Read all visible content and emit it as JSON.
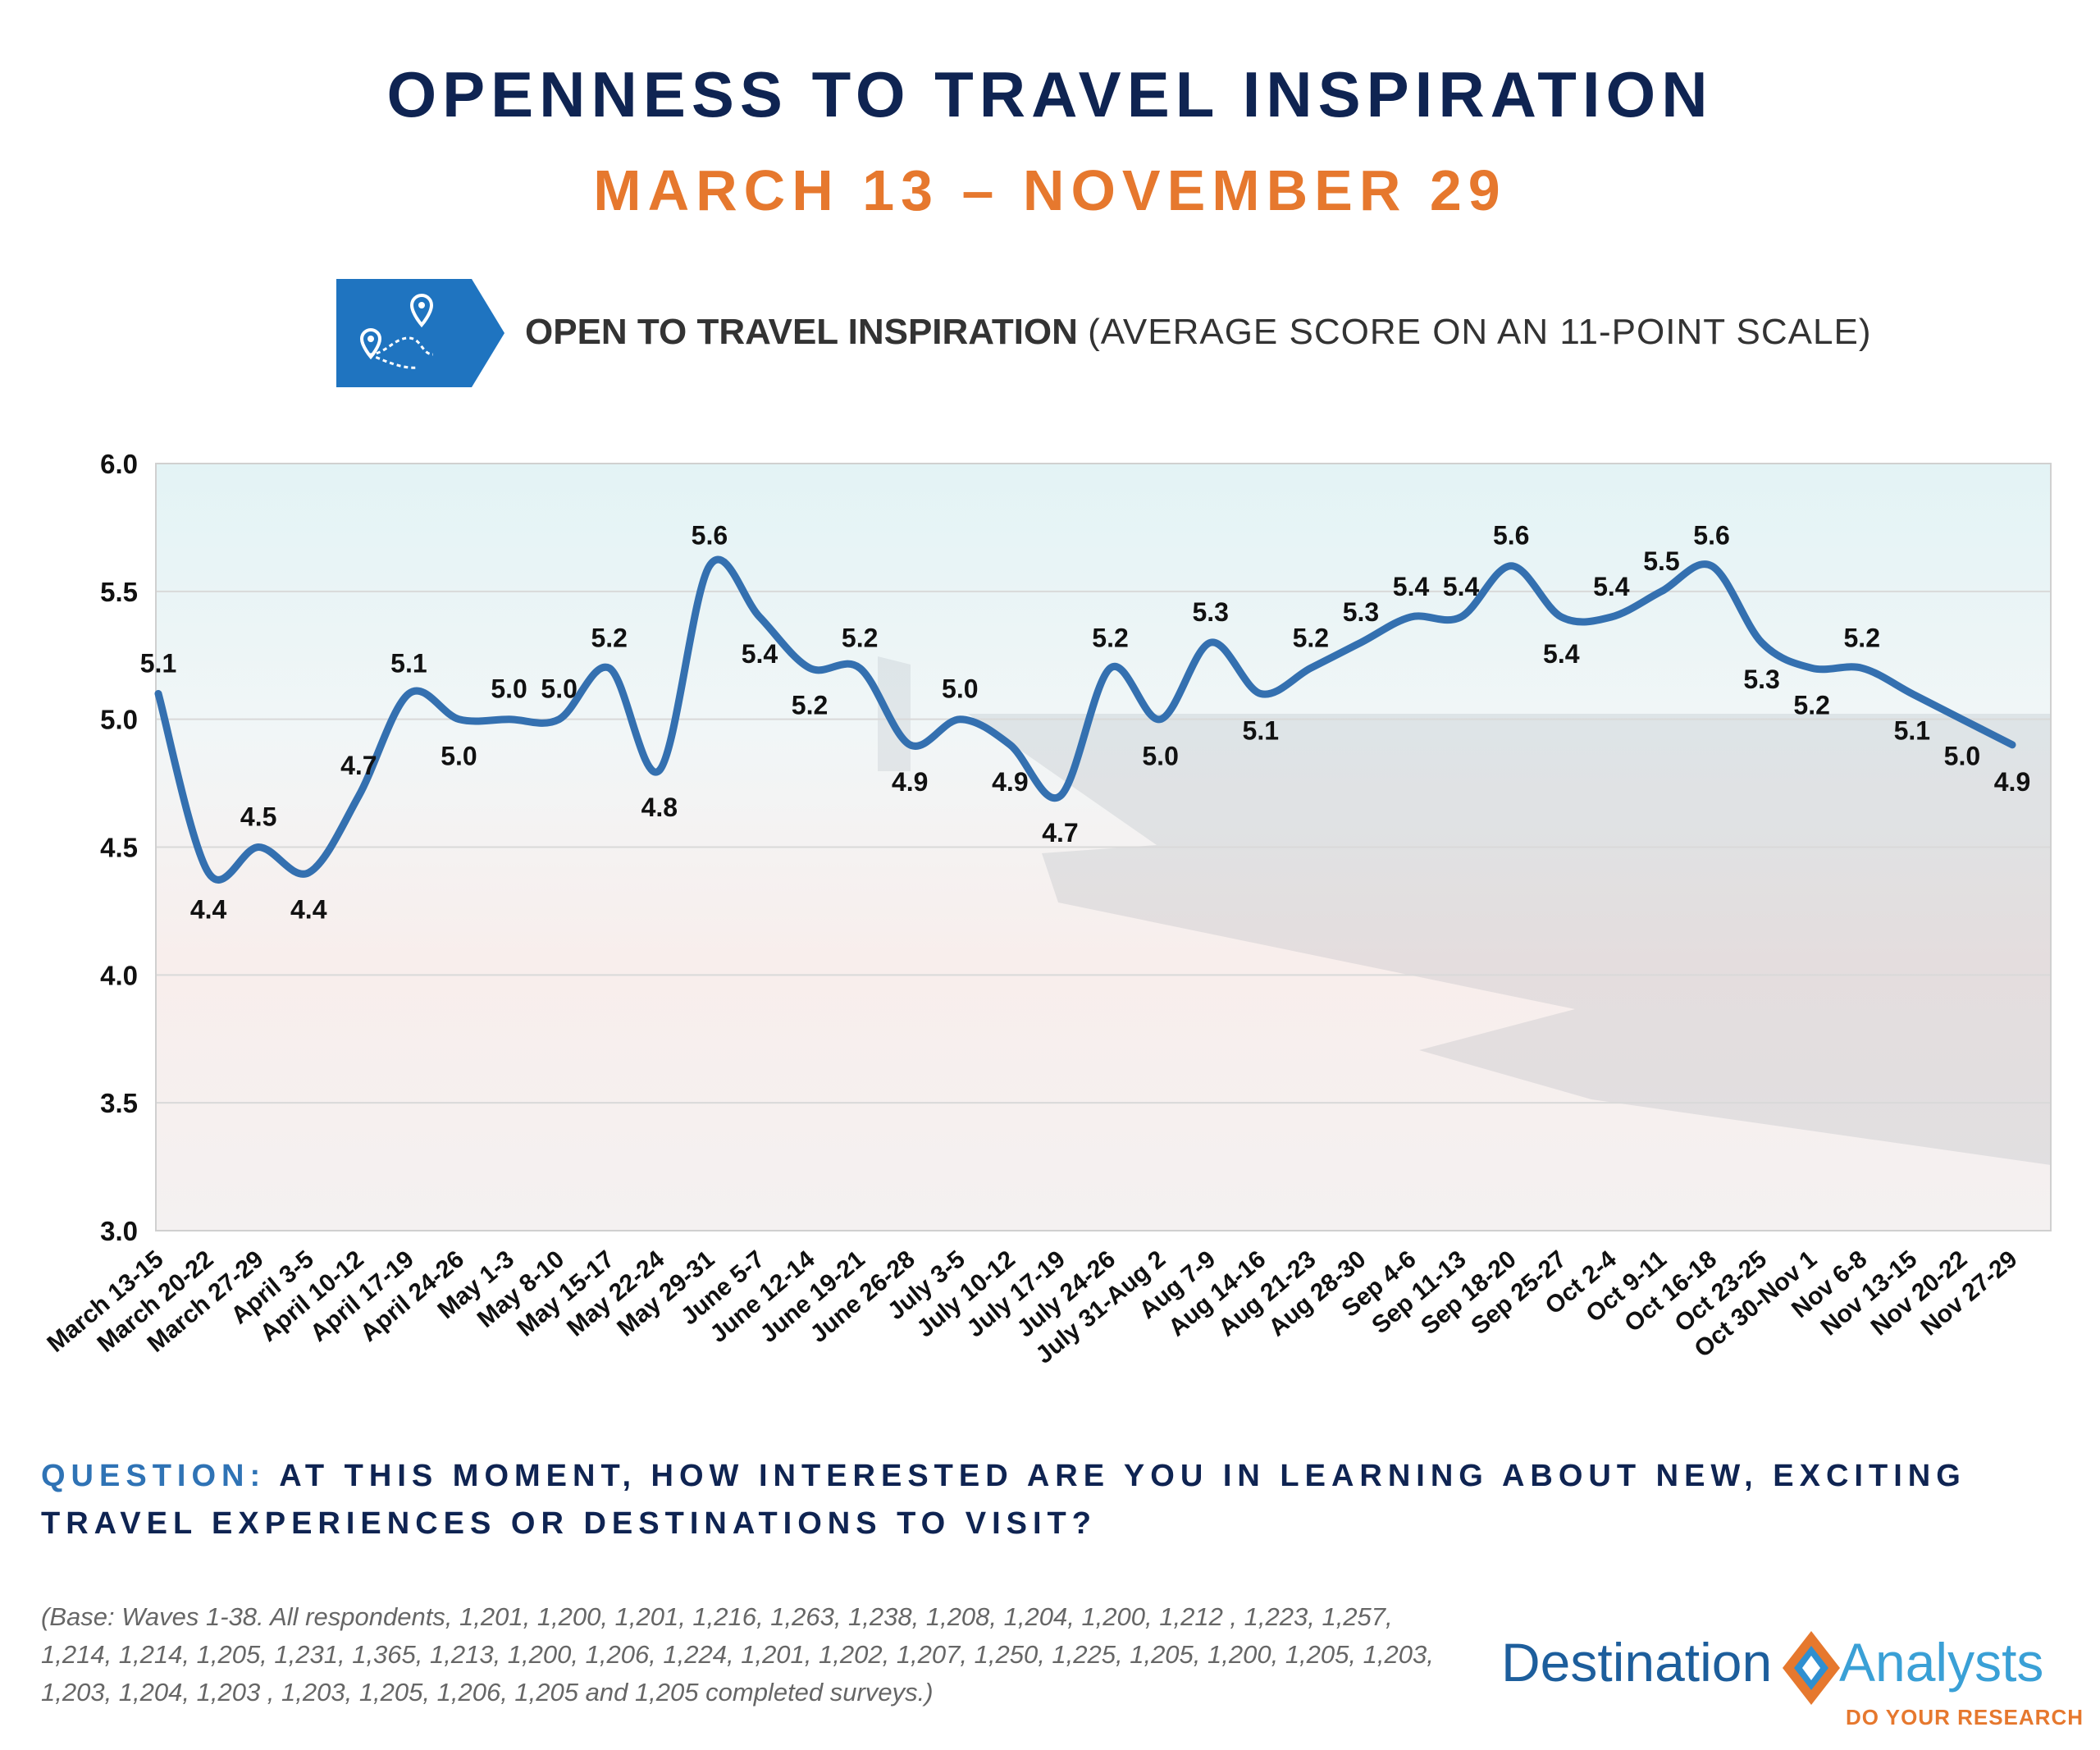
{
  "header": {
    "title": "OPENNESS TO TRAVEL INSPIRATION",
    "date_range": "MARCH 13 – NOVEMBER 29",
    "badge_icon": "travel-route-pins-icon",
    "chart_title_bold": "OPEN TO TRAVEL INSPIRATION",
    "chart_title_light": "(AVERAGE SCORE ON AN 11-POINT SCALE)"
  },
  "colors": {
    "navy": "#0f2452",
    "orange": "#e6782e",
    "line": "#3470b0",
    "badge": "#1f74c0"
  },
  "chart_data": {
    "type": "line",
    "title": "OPEN TO TRAVEL INSPIRATION (AVERAGE SCORE ON AN 11-POINT SCALE)",
    "xlabel": "",
    "ylabel": "",
    "ylim": [
      3.0,
      6.0
    ],
    "yticks": [
      "3.0",
      "3.5",
      "4.0",
      "4.5",
      "5.0",
      "5.5",
      "6.0"
    ],
    "grid": true,
    "legend": "none",
    "categories": [
      "March 13-15",
      "March 20-22",
      "March 27-29",
      "April 3-5",
      "April 10-12",
      "April 17-19",
      "April 24-26",
      "May 1-3",
      "May 8-10",
      "May 15-17",
      "May 22-24",
      "May 29-31",
      "June 5-7",
      "June 12-14",
      "June 19-21",
      "June 26-28",
      "July 3-5",
      "July 10-12",
      "July 17-19",
      "July 24-26",
      "July 31-Aug 2",
      "Aug 7-9",
      "Aug 14-16",
      "Aug 21-23",
      "Aug 28-30",
      "Sep 4-6",
      "Sep 11-13",
      "Sep 18-20",
      "Sep 25-27",
      "Oct 2-4",
      "Oct 9-11",
      "Oct 16-18",
      "Oct 23-25",
      "Oct 30-Nov 1",
      "Nov 6-8",
      "Nov 13-15",
      "Nov 20-22",
      "Nov 27-29"
    ],
    "series": [
      {
        "values": [
          5.1,
          4.4,
          4.5,
          4.4,
          4.7,
          5.1,
          5.0,
          5.0,
          5.0,
          5.2,
          4.8,
          5.6,
          5.4,
          5.2,
          5.2,
          4.9,
          5.0,
          4.9,
          4.7,
          5.2,
          5.0,
          5.3,
          5.1,
          5.2,
          5.3,
          5.4,
          5.4,
          5.6,
          5.4,
          5.4,
          5.5,
          5.6,
          5.3,
          5.2,
          5.2,
          5.1,
          5.0,
          4.9
        ],
        "labels": [
          "5.1",
          "4.4",
          "4.5",
          "4.4",
          "4.7",
          "5.1",
          "5.0",
          "5.0",
          "5.0",
          "5.2",
          "4.8",
          "5.6",
          "5.4",
          "5.2",
          "5.2",
          "4.9",
          "5.0",
          "4.9",
          "4.7",
          "5.2",
          "5.0",
          "5.3",
          "5.1",
          "5.2",
          "5.3",
          "5.4",
          "5.4",
          "5.6",
          "5.4",
          "5.4",
          "5.5",
          "5.6",
          "5.3",
          "5.2",
          "5.2",
          "5.1",
          "5.0",
          "4.9"
        ]
      }
    ]
  },
  "question": {
    "label": "QUESTION:",
    "text": "AT THIS MOMENT, HOW INTERESTED ARE YOU IN LEARNING ABOUT NEW, EXCITING TRAVEL EXPERIENCES OR DESTINATIONS TO VISIT?"
  },
  "base_note": "(Base: Waves 1-38.  All respondents, 1,201, 1,200, 1,201, 1,216, 1,263, 1,238, 1,208, 1,204, 1,200, 1,212 , 1,223, 1,257, 1,214, 1,214, 1,205, 1,231, 1,365, 1,213, 1,200, 1,206, 1,224, 1,201, 1,202, 1,207, 1,250, 1,225, 1,205, 1,200, 1,205, 1,203, 1,203, 1,204, 1,203 , 1,203, 1,205, 1,206, 1,205 and 1,205 completed surveys.)",
  "logo": {
    "word1": "Destination",
    "word2": "Analysts",
    "tagline": "DO YOUR RESEARCH"
  }
}
